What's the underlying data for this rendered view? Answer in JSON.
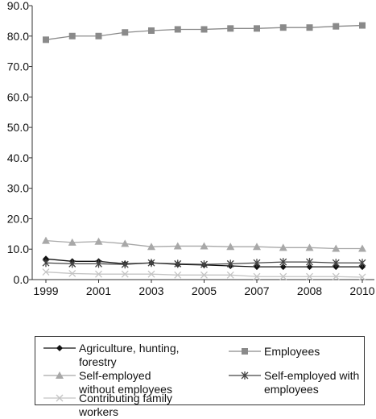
{
  "chart_data": {
    "type": "line",
    "categories": [
      "1999",
      null,
      "2001",
      null,
      "2003",
      null,
      "2005",
      null,
      "2007",
      null,
      "2008",
      null,
      "2010"
    ],
    "ylim": [
      0,
      90
    ],
    "yticks": [
      {
        "value": 0,
        "label": "0.0"
      },
      {
        "value": 10,
        "label": "10.0"
      },
      {
        "value": 20,
        "label": "20.0"
      },
      {
        "value": 30,
        "label": "30.0"
      },
      {
        "value": 40,
        "label": "40.0"
      },
      {
        "value": 50,
        "label": "50.0"
      },
      {
        "value": 60,
        "label": "60.0"
      },
      {
        "value": 70,
        "label": "70.0"
      },
      {
        "value": 80,
        "label": "80.0"
      },
      {
        "value": 90,
        "label": "90.0"
      }
    ],
    "grid": false,
    "series": [
      {
        "name": "Agriculture, hunting, forestry",
        "color": "#111111",
        "marker": "diamond",
        "values": [
          6.8,
          6.0,
          6.0,
          5.2,
          5.5,
          5.0,
          4.8,
          4.5,
          4.2,
          4.2,
          4.2,
          4.2,
          4.2
        ]
      },
      {
        "name": "Employees",
        "color": "#8a8a8a",
        "marker": "square",
        "values": [
          78.8,
          80.0,
          80.0,
          81.2,
          81.8,
          82.2,
          82.2,
          82.5,
          82.5,
          82.8,
          82.8,
          83.2,
          83.5
        ]
      },
      {
        "name": "Self-employed without employees",
        "color": "#a8a8a8",
        "marker": "triangle",
        "values": [
          12.8,
          12.2,
          12.5,
          11.8,
          10.8,
          11.0,
          11.0,
          10.8,
          10.8,
          10.5,
          10.5,
          10.2,
          10.2
        ]
      },
      {
        "name": "Self-employed with employees",
        "color": "#444444",
        "marker": "star",
        "values": [
          5.5,
          5.2,
          5.2,
          5.0,
          5.5,
          5.2,
          5.0,
          5.2,
          5.5,
          5.8,
          5.8,
          5.5,
          5.5
        ]
      },
      {
        "name": "Contributing family workers",
        "color": "#c4c4c4",
        "marker": "x",
        "values": [
          2.5,
          2.0,
          1.8,
          1.8,
          1.8,
          1.5,
          1.5,
          1.5,
          1.0,
          1.0,
          1.0,
          1.0,
          0.8
        ]
      }
    ]
  }
}
